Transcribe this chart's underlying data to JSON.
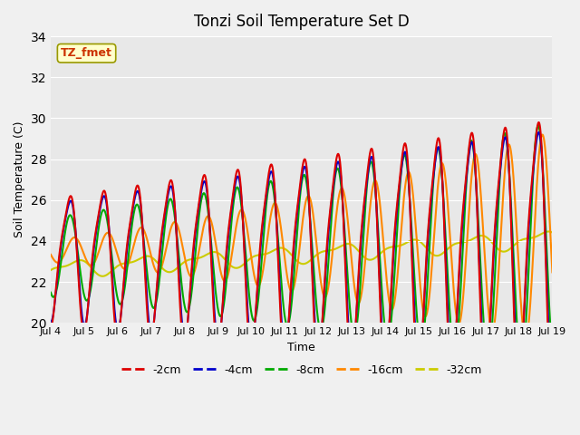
{
  "title": "Tonzi Soil Temperature Set D",
  "xlabel": "Time",
  "ylabel": "Soil Temperature (C)",
  "ylim": [
    20,
    34
  ],
  "annotation": "TZ_fmet",
  "bg_color": "#e8e8e8",
  "fig_color": "#f0f0f0",
  "legend": [
    "-2cm",
    "-4cm",
    "-8cm",
    "-16cm",
    "-32cm"
  ],
  "legend_colors": [
    "#dd0000",
    "#0000cc",
    "#00aa00",
    "#ff8800",
    "#cccc00"
  ],
  "xtick_labels": [
    "Jul 4",
    "Jul 5",
    "Jul 6",
    "Jul 7",
    "Jul 8",
    "Jul 9",
    "Jul 10",
    "Jul 11",
    "Jul 12",
    "Jul 13",
    "Jul 14",
    "Jul 15",
    "Jul 16",
    "Jul 17",
    "Jul 18",
    "Jul 19"
  ],
  "grid_color": "#ffffff",
  "line_width": 1.5
}
